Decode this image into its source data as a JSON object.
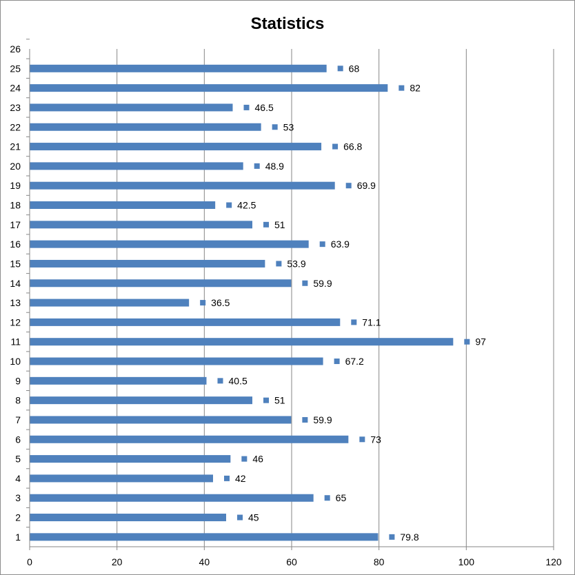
{
  "chart_data": {
    "type": "bar",
    "orientation": "horizontal",
    "title": "Statistics",
    "xlabel": "",
    "ylabel": "",
    "xlim": [
      0,
      120
    ],
    "x_ticks": [
      0,
      20,
      40,
      60,
      80,
      100,
      120
    ],
    "categories": [
      "1",
      "2",
      "3",
      "4",
      "5",
      "6",
      "7",
      "8",
      "9",
      "10",
      "11",
      "12",
      "13",
      "14",
      "15",
      "16",
      "17",
      "18",
      "19",
      "20",
      "21",
      "22",
      "23",
      "24",
      "25",
      "26"
    ],
    "values": [
      79.8,
      45,
      65,
      42,
      46,
      73,
      59.9,
      51,
      40.5,
      67.2,
      97,
      71.1,
      36.5,
      59.9,
      53.9,
      63.9,
      51,
      42.5,
      69.9,
      48.9,
      66.8,
      53,
      46.5,
      82,
      68,
      null
    ],
    "data_labels": [
      "79.8",
      "45",
      "65",
      "42",
      "46",
      "73",
      "59.9",
      "51",
      "40.5",
      "67.2",
      "97",
      "71.1",
      "36.5",
      "59.9",
      "53.9",
      "63.9",
      "51",
      "42.5",
      "69.9",
      "48.9",
      "66.8",
      "53",
      "46.5",
      "82",
      "68",
      ""
    ],
    "grid": "vertical major gridlines",
    "legend": "none",
    "colors": {
      "bar": "#4f81bd",
      "grid": "#868686",
      "axis": "#868686",
      "text": "#000000"
    }
  }
}
